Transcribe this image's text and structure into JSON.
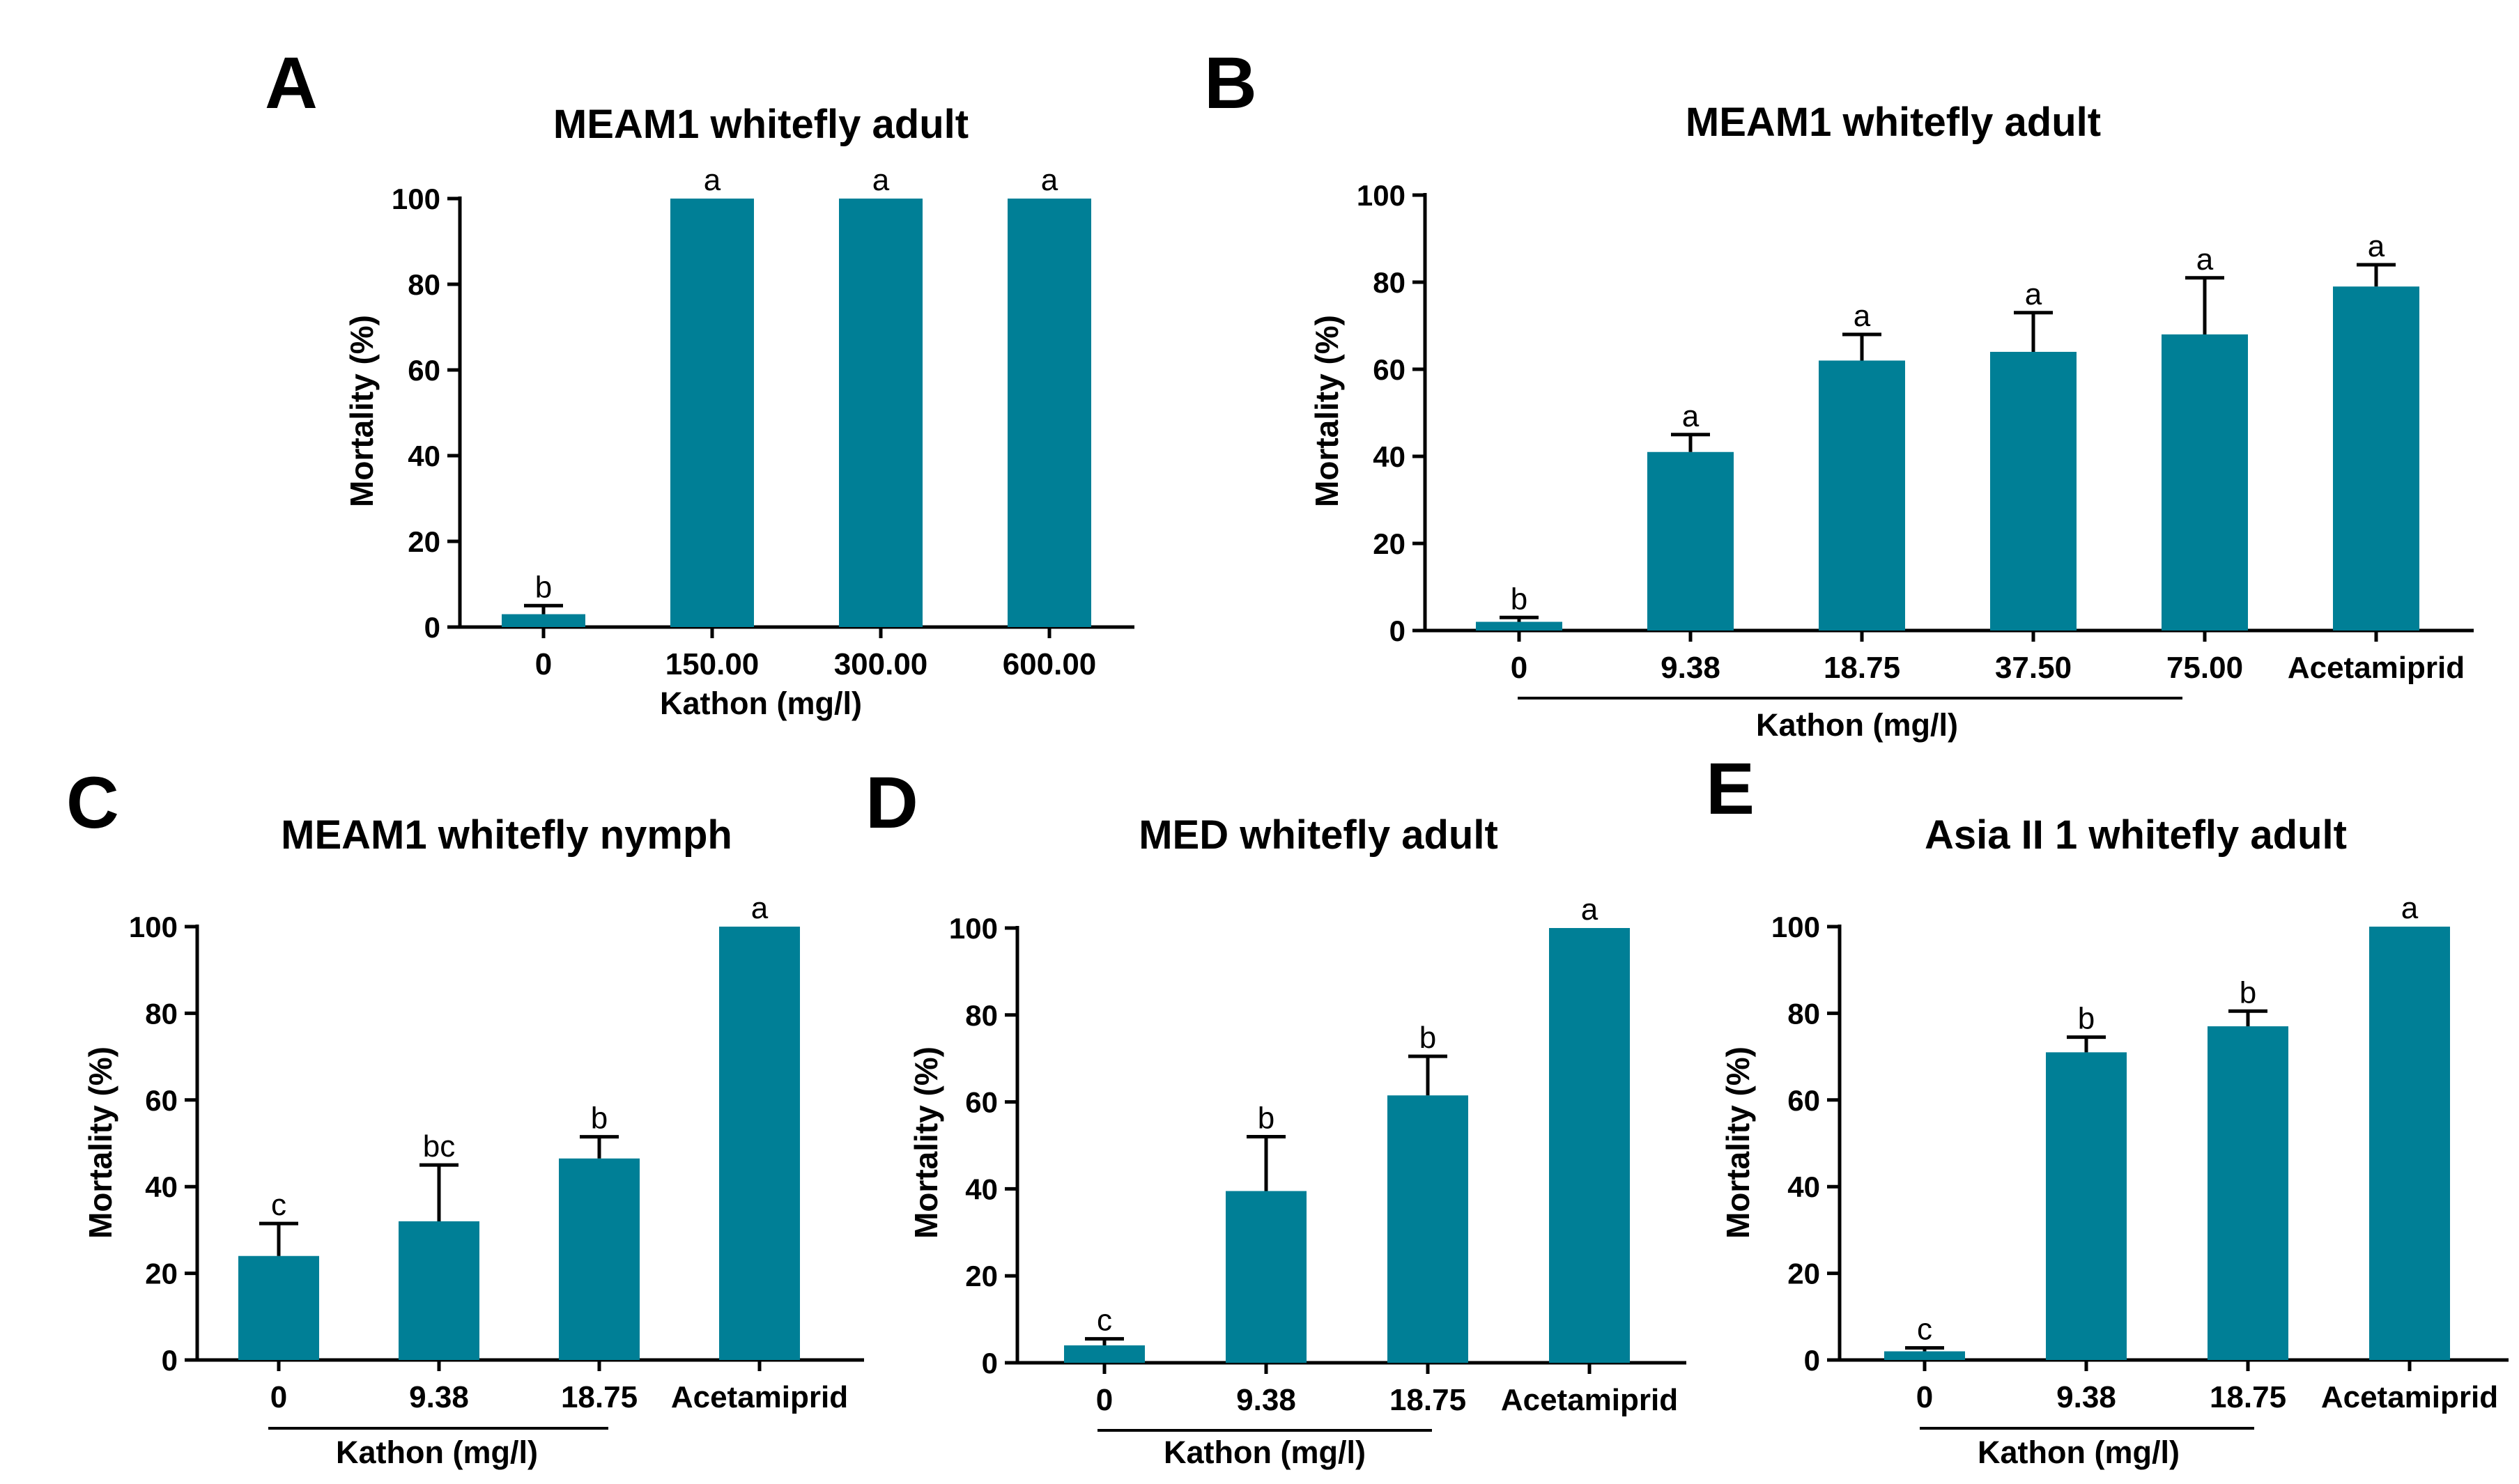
{
  "colors": {
    "bar": "#007f96",
    "axis": "#000000",
    "text": "#000000"
  },
  "chart_data": [
    {
      "panel": "A",
      "type": "bar",
      "title": "MEAM1 whitefly adult",
      "ylabel": "Mortality (%)",
      "xlabel": "Kathon (mg/l)",
      "categories": [
        "0",
        "150.00",
        "300.00",
        "600.00"
      ],
      "values": [
        3,
        100,
        100,
        100
      ],
      "errors": [
        2,
        0,
        0,
        0
      ],
      "letters": [
        "b",
        "a",
        "a",
        "a"
      ],
      "ylim": [
        0,
        100
      ],
      "yticks": [
        "0",
        "20",
        "40",
        "60",
        "80",
        "100"
      ],
      "kathon_bracket": false
    },
    {
      "panel": "B",
      "type": "bar",
      "title": "MEAM1 whitefly adult",
      "ylabel": "Mortality (%)",
      "xlabel": "Kathon (mg/l)",
      "categories": [
        "0",
        "9.38",
        "18.75",
        "37.50",
        "75.00",
        "Acetamiprid"
      ],
      "values": [
        2,
        41,
        62,
        64,
        68,
        79
      ],
      "errors": [
        1,
        4,
        6,
        9,
        13,
        5
      ],
      "letters": [
        "b",
        "a",
        "a",
        "a",
        "a",
        "a"
      ],
      "ylim": [
        0,
        100
      ],
      "yticks": [
        "0",
        "20",
        "40",
        "60",
        "80",
        "100"
      ],
      "kathon_bracket": true
    },
    {
      "panel": "C",
      "type": "bar",
      "title": "MEAM1 whitefly nymph",
      "ylabel": "Mortality (%)",
      "xlabel": "Kathon (mg/l)",
      "categories": [
        "0",
        "9.38",
        "18.75",
        "Acetamiprid"
      ],
      "values": [
        24,
        32,
        46.5,
        100
      ],
      "errors": [
        7.5,
        13,
        5,
        0
      ],
      "letters": [
        "c",
        "bc",
        "b",
        "a"
      ],
      "ylim": [
        0,
        100
      ],
      "yticks": [
        "0",
        "20",
        "40",
        "60",
        "80",
        "100"
      ],
      "kathon_bracket": true
    },
    {
      "panel": "D",
      "type": "bar",
      "title": "MED whitefly adult",
      "ylabel": "Mortality (%)",
      "xlabel": "Kathon (mg/l)",
      "categories": [
        "0",
        "9.38",
        "18.75",
        "Acetamiprid"
      ],
      "values": [
        4,
        39.5,
        61.5,
        100
      ],
      "errors": [
        1.5,
        12.5,
        9,
        0
      ],
      "letters": [
        "c",
        "b",
        "b",
        "a"
      ],
      "ylim": [
        0,
        100
      ],
      "yticks": [
        "0",
        "20",
        "40",
        "60",
        "80",
        "100"
      ],
      "kathon_bracket": true
    },
    {
      "panel": "E",
      "type": "bar",
      "title": "Asia II 1 whitefly adult",
      "ylabel": "Mortality (%)",
      "xlabel": "Kathon (mg/l)",
      "categories": [
        "0",
        "9.38",
        "18.75",
        "Acetamiprid"
      ],
      "values": [
        2,
        71,
        77,
        100
      ],
      "errors": [
        0.8,
        3.5,
        3.5,
        0
      ],
      "letters": [
        "c",
        "b",
        "b",
        "a"
      ],
      "ylim": [
        0,
        100
      ],
      "yticks": [
        "0",
        "20",
        "40",
        "60",
        "80",
        "100"
      ],
      "kathon_bracket": true
    }
  ]
}
